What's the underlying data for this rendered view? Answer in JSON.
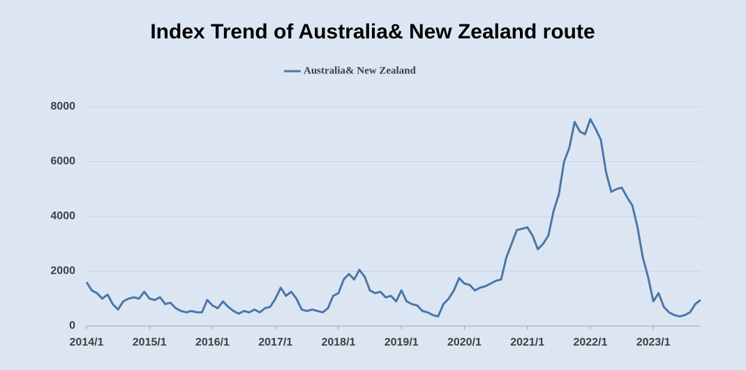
{
  "chart_data": {
    "type": "line",
    "title": "Index Trend of Australia& New Zealand route",
    "x": [
      "2014/1",
      "2014/2",
      "2014/3",
      "2014/4",
      "2014/5",
      "2014/6",
      "2014/7",
      "2014/8",
      "2014/9",
      "2014/10",
      "2014/11",
      "2014/12",
      "2015/1",
      "2015/2",
      "2015/3",
      "2015/4",
      "2015/5",
      "2015/6",
      "2015/7",
      "2015/8",
      "2015/9",
      "2015/10",
      "2015/11",
      "2015/12",
      "2016/1",
      "2016/2",
      "2016/3",
      "2016/4",
      "2016/5",
      "2016/6",
      "2016/7",
      "2016/8",
      "2016/9",
      "2016/10",
      "2016/11",
      "2016/12",
      "2017/1",
      "2017/2",
      "2017/3",
      "2017/4",
      "2017/5",
      "2017/6",
      "2017/7",
      "2017/8",
      "2017/9",
      "2017/10",
      "2017/11",
      "2017/12",
      "2018/1",
      "2018/2",
      "2018/3",
      "2018/4",
      "2018/5",
      "2018/6",
      "2018/7",
      "2018/8",
      "2018/9",
      "2018/10",
      "2018/11",
      "2018/12",
      "2019/1",
      "2019/2",
      "2019/3",
      "2019/4",
      "2019/5",
      "2019/6",
      "2019/7",
      "2019/8",
      "2019/9",
      "2019/10",
      "2019/11",
      "2019/12",
      "2020/1",
      "2020/2",
      "2020/3",
      "2020/4",
      "2020/5",
      "2020/6",
      "2020/7",
      "2020/8",
      "2020/9",
      "2020/10",
      "2020/11",
      "2020/12",
      "2021/1",
      "2021/2",
      "2021/3",
      "2021/4",
      "2021/5",
      "2021/6",
      "2021/7",
      "2021/8",
      "2021/9",
      "2021/10",
      "2021/11",
      "2021/12",
      "2022/1",
      "2022/2",
      "2022/3",
      "2022/4",
      "2022/5",
      "2022/6",
      "2022/7",
      "2022/8",
      "2022/9",
      "2022/10",
      "2022/11",
      "2022/12",
      "2023/1",
      "2023/2",
      "2023/3",
      "2023/4",
      "2023/5",
      "2023/6",
      "2023/7",
      "2023/8",
      "2023/9",
      "2023/10"
    ],
    "series": [
      {
        "name": "Australia& New Zealand",
        "color": "#4a76a8",
        "values": [
          1600,
          1300,
          1200,
          1000,
          1150,
          800,
          600,
          900,
          1000,
          1050,
          1000,
          1250,
          1000,
          950,
          1050,
          800,
          850,
          650,
          550,
          500,
          550,
          500,
          500,
          950,
          750,
          650,
          900,
          700,
          550,
          450,
          550,
          500,
          600,
          500,
          650,
          700,
          1000,
          1400,
          1100,
          1250,
          1000,
          600,
          550,
          600,
          550,
          500,
          650,
          1100,
          1200,
          1700,
          1900,
          1700,
          2050,
          1800,
          1300,
          1200,
          1250,
          1050,
          1100,
          900,
          1300,
          900,
          800,
          750,
          550,
          500,
          400,
          350,
          800,
          1000,
          1300,
          1750,
          1550,
          1500,
          1300,
          1400,
          1450,
          1550,
          1650,
          1700,
          2500,
          3000,
          3500,
          3550,
          3600,
          3300,
          2800,
          3000,
          3300,
          4200,
          4800,
          6000,
          6500,
          7450,
          7100,
          7000,
          7550,
          7200,
          6800,
          5600,
          4900,
          5000,
          5050,
          4700,
          4400,
          3600,
          2500,
          1800,
          900,
          1200,
          700,
          500,
          400,
          350,
          400,
          500,
          800,
          950
        ]
      }
    ],
    "ylim": [
      0,
      8000
    ],
    "yticks": [
      0,
      2000,
      4000,
      6000,
      8000
    ],
    "xticks": [
      "2014/1",
      "2015/1",
      "2016/1",
      "2017/1",
      "2018/1",
      "2019/1",
      "2020/1",
      "2021/1",
      "2022/1",
      "2023/1"
    ],
    "grid": true
  }
}
